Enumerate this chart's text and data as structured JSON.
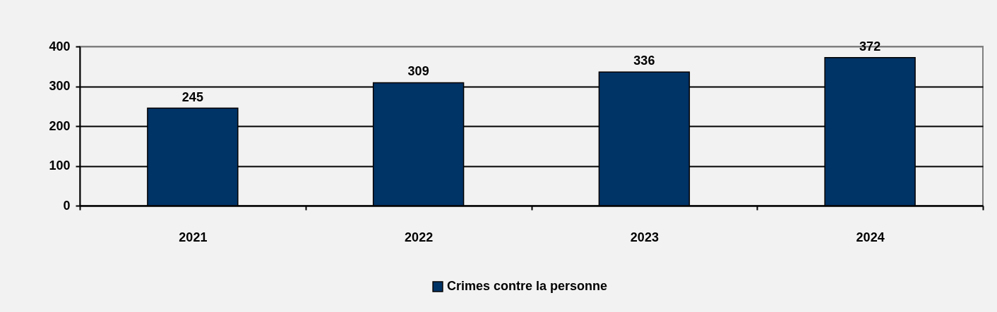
{
  "chart_data": {
    "type": "bar",
    "categories": [
      "2021",
      "2022",
      "2023",
      "2024"
    ],
    "series": [
      {
        "name": "Crimes contre la personne",
        "color": "#003366",
        "values": [
          245,
          309,
          336,
          372
        ]
      }
    ],
    "ylim": [
      0,
      400
    ],
    "yticks": [
      0,
      100,
      200,
      300,
      400
    ],
    "grid": "y",
    "legend": "bottom",
    "data_labels": true
  }
}
